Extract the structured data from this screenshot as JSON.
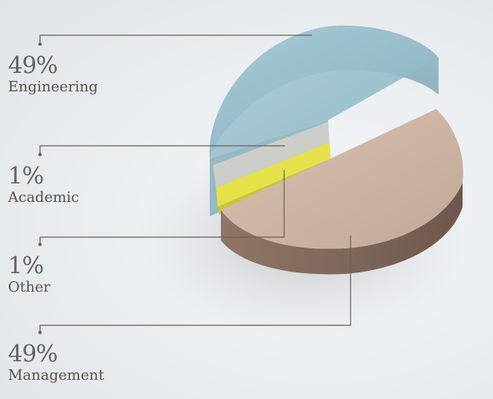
{
  "chart_data": {
    "type": "pie",
    "title": "",
    "categories": [
      "Engineering",
      "Academic",
      "Other",
      "Management"
    ],
    "values": [
      49,
      1,
      1,
      49
    ],
    "value_labels": [
      "49%",
      "1%",
      "1%",
      "49%"
    ],
    "colors": [
      "#9ec3cf",
      "#e8e24e",
      "#c9c7c2",
      "#cdb4a2"
    ],
    "exploded": "Management"
  }
}
